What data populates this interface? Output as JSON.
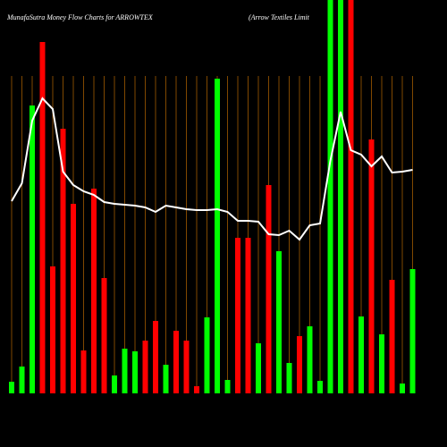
{
  "chart_data": {
    "type": "bar",
    "title": "MunafaSutra  Money Flow  Charts for ARROWTEX",
    "subtitle": "(Arrow  Textiles Limit",
    "categories": [
      null,
      null,
      null,
      null,
      null,
      null,
      null,
      null,
      null,
      null,
      null,
      null,
      null,
      null,
      null,
      null,
      null,
      null,
      null,
      null,
      null,
      null,
      null,
      null,
      null,
      null,
      null,
      null,
      null,
      null,
      null,
      null,
      null,
      null,
      null,
      null,
      null,
      null,
      null,
      null
    ],
    "values": [
      13,
      30,
      322,
      393,
      142,
      296,
      212,
      48,
      229,
      129,
      20,
      50,
      47,
      59,
      81,
      32,
      70,
      59,
      8,
      85,
      352,
      15,
      174,
      174,
      56,
      233,
      159,
      34,
      64,
      75,
      14,
      460,
      460,
      460,
      86,
      284,
      66,
      127,
      11,
      139
    ],
    "colors": [
      "#00ff00",
      "#00ff00",
      "#00ff00",
      "#ff0000",
      "#ff0000",
      "#ff0000",
      "#ff0000",
      "#ff0000",
      "#ff0000",
      "#ff0000",
      "#00ff00",
      "#00ff00",
      "#00ff00",
      "#ff0000",
      "#ff0000",
      "#00ff00",
      "#ff0000",
      "#ff0000",
      "#ff0000",
      "#00ff00",
      "#00ff00",
      "#00ff00",
      "#ff0000",
      "#ff0000",
      "#00ff00",
      "#ff0000",
      "#00ff00",
      "#00ff00",
      "#ff0000",
      "#00ff00",
      "#00ff00",
      "#00ff00",
      "#00ff00",
      "#ff0000",
      "#00ff00",
      "#ff0000",
      "#00ff00",
      "#ff0000",
      "#00ff00",
      "#00ff00"
    ],
    "line": {
      "color": "#ffffff",
      "values": [
        215,
        235,
        305,
        330,
        318,
        248,
        233,
        226,
        222,
        214,
        212,
        211,
        210,
        208,
        203,
        210,
        208,
        206,
        205,
        205,
        206,
        203,
        193,
        193,
        192,
        178,
        177,
        182,
        172,
        188,
        190,
        260,
        315,
        272,
        267,
        254,
        265,
        247,
        248,
        250
      ]
    },
    "ylim": [
      0,
      440
    ],
    "grid_color": "#a05a00"
  }
}
